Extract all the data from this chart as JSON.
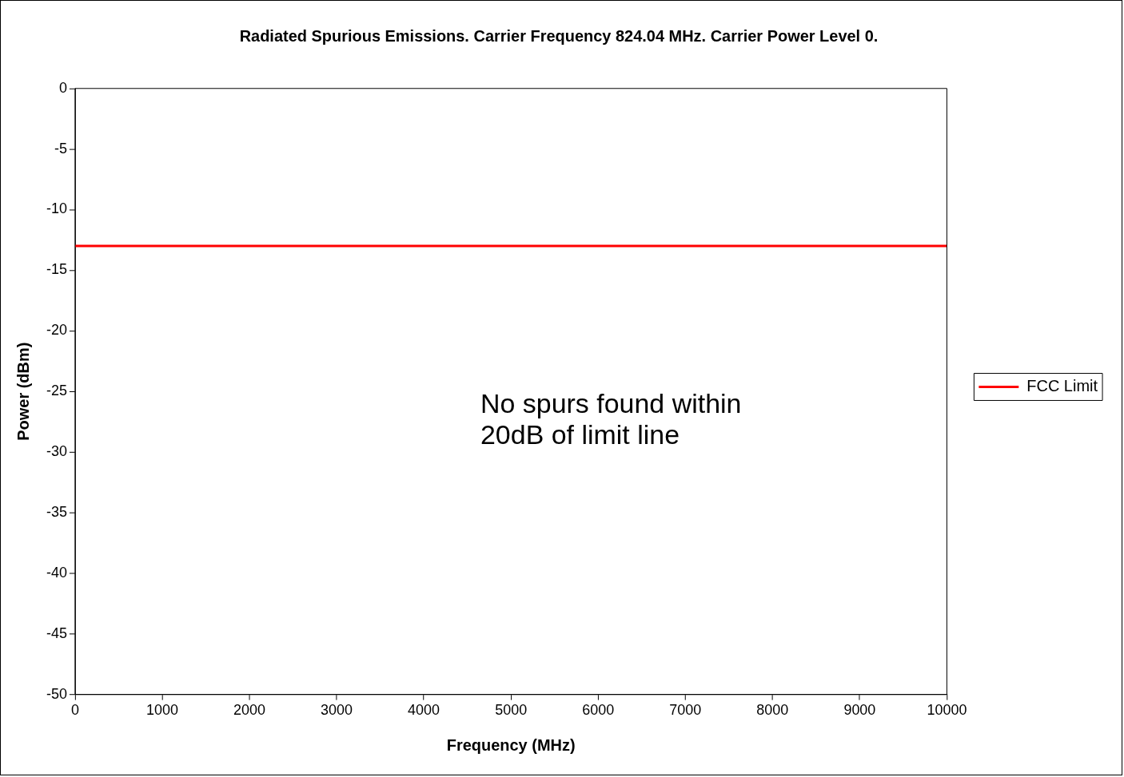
{
  "chart_data": {
    "type": "line",
    "title": "Radiated Spurious Emissions. Carrier Frequency 824.04 MHz. Carrier Power Level 0.",
    "xlabel": "Frequency (MHz)",
    "ylabel": "Power (dBm)",
    "series": [
      {
        "name": "FCC Limit",
        "color": "#ff0000",
        "x": [
          0,
          10000
        ],
        "values": [
          -13,
          -13
        ]
      }
    ],
    "xlim": [
      0,
      10000
    ],
    "xticks": [
      0,
      1000,
      2000,
      3000,
      4000,
      5000,
      6000,
      7000,
      8000,
      9000,
      10000
    ],
    "ylim": [
      -50,
      0
    ],
    "yticks": [
      -50,
      -45,
      -40,
      -35,
      -30,
      -25,
      -20,
      -15,
      -10,
      -5,
      0
    ],
    "legend": "right",
    "marker": "none",
    "line_style": "solid",
    "annotations": [
      "No spurs found within 20dB of limit line"
    ]
  }
}
